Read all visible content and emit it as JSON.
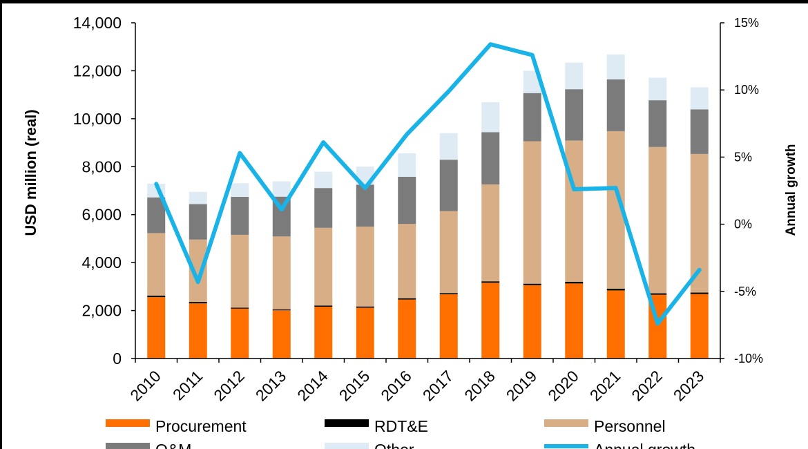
{
  "chart_data": {
    "type": "bar",
    "stacked": true,
    "categories": [
      "2010",
      "2011",
      "2012",
      "2013",
      "2014",
      "2015",
      "2016",
      "2017",
      "2018",
      "2019",
      "2020",
      "2021",
      "2022",
      "2023"
    ],
    "ylabel": "USD million (real)",
    "y2label": "Annual growth",
    "ylim": [
      0,
      14000
    ],
    "y2lim": [
      -10,
      15
    ],
    "yticks": [
      "0",
      "2,000",
      "4,000",
      "6,000",
      "8,000",
      "10,000",
      "12,000",
      "14,000"
    ],
    "y2ticks": [
      "-10%",
      "-5%",
      "0%",
      "5%",
      "10%",
      "15%"
    ],
    "series": [
      {
        "name": "Procurement",
        "color": "#ff6f00",
        "values": [
          2560,
          2300,
          2080,
          2010,
          2160,
          2120,
          2460,
          2680,
          3160,
          3060,
          3130,
          2840,
          2660,
          2690
        ]
      },
      {
        "name": "RDT&E",
        "color": "#000000",
        "values": [
          60,
          60,
          40,
          40,
          50,
          50,
          50,
          50,
          60,
          60,
          70,
          70,
          60,
          60
        ]
      },
      {
        "name": "Personnel",
        "color": "#d8ae86",
        "values": [
          2610,
          2600,
          3040,
          3040,
          3240,
          3330,
          3100,
          3420,
          4040,
          5940,
          5890,
          6570,
          6100,
          5780
        ]
      },
      {
        "name": "O&M",
        "color": "#7b7b7b",
        "values": [
          1490,
          1480,
          1580,
          1660,
          1660,
          1750,
          1970,
          2140,
          2180,
          2010,
          2140,
          2160,
          1950,
          1860
        ]
      },
      {
        "name": "Other",
        "color": "#deebf4",
        "values": [
          570,
          510,
          570,
          640,
          680,
          750,
          980,
          1110,
          1250,
          930,
          1110,
          1040,
          940,
          920
        ]
      }
    ],
    "line": {
      "name": "Annual growth",
      "color": "#1ab3e8",
      "axis": "right",
      "values_percent": [
        3.0,
        -4.3,
        5.3,
        1.1,
        6.1,
        2.7,
        6.7,
        9.9,
        13.4,
        12.6,
        2.6,
        2.7,
        -7.4,
        -3.4
      ]
    },
    "legend_position": "bottom",
    "grid": false
  },
  "legend": [
    {
      "label": "Procurement",
      "color": "#ff6f00"
    },
    {
      "label": "RDT&E",
      "color": "#000000"
    },
    {
      "label": "Personnel",
      "color": "#d8ae86"
    },
    {
      "label": "O&M",
      "color": "#7b7b7b"
    },
    {
      "label": "Other",
      "color": "#deebf4"
    },
    {
      "label": "Annual growth",
      "color": "#1ab3e8"
    }
  ]
}
